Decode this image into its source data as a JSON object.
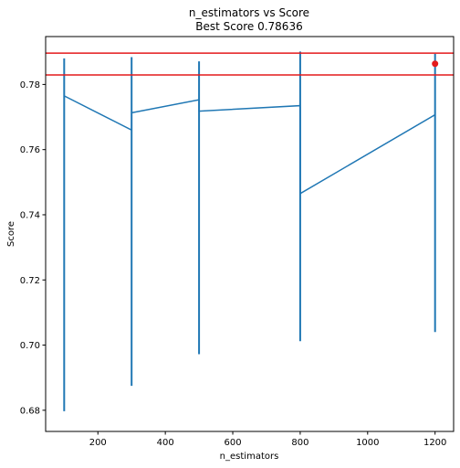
{
  "chart_data": {
    "type": "line",
    "title": "n_estimators vs Score",
    "subtitle": "Best Score 0.78636",
    "xlabel": "n_estimators",
    "ylabel": "Score",
    "xlim": [
      45,
      1255
    ],
    "ylim": [
      0.6735,
      0.7947
    ],
    "xticks": [
      200,
      400,
      600,
      800,
      1000,
      1200
    ],
    "xtick_labels": [
      "200",
      "400",
      "600",
      "800",
      "1000",
      "1200"
    ],
    "yticks": [
      0.68,
      0.7,
      0.72,
      0.74,
      0.76,
      0.78
    ],
    "ytick_labels": [
      "0.68",
      "0.70",
      "0.72",
      "0.74",
      "0.76",
      "0.78"
    ],
    "grid": false,
    "series_color": "#1f77b4",
    "reference_color": "#e41a1c",
    "line": {
      "x": [
        100,
        300,
        300,
        500,
        500,
        800,
        800,
        1200
      ],
      "y": [
        0.7765,
        0.766,
        0.7713,
        0.7753,
        0.7718,
        0.7735,
        0.7465,
        0.7707
      ]
    },
    "ranges": [
      {
        "x": 100,
        "ymin": 0.6797,
        "ymax": 0.788
      },
      {
        "x": 300,
        "ymin": 0.6875,
        "ymax": 0.7884
      },
      {
        "x": 500,
        "ymin": 0.6972,
        "ymax": 0.7871
      },
      {
        "x": 800,
        "ymin": 0.7012,
        "ymax": 0.7901
      },
      {
        "x": 1200,
        "ymin": 0.704,
        "ymax": 0.7894
      }
    ],
    "hlines": [
      0.7896,
      0.7829
    ],
    "best_point": {
      "x": 1200,
      "y": 0.78636
    }
  }
}
